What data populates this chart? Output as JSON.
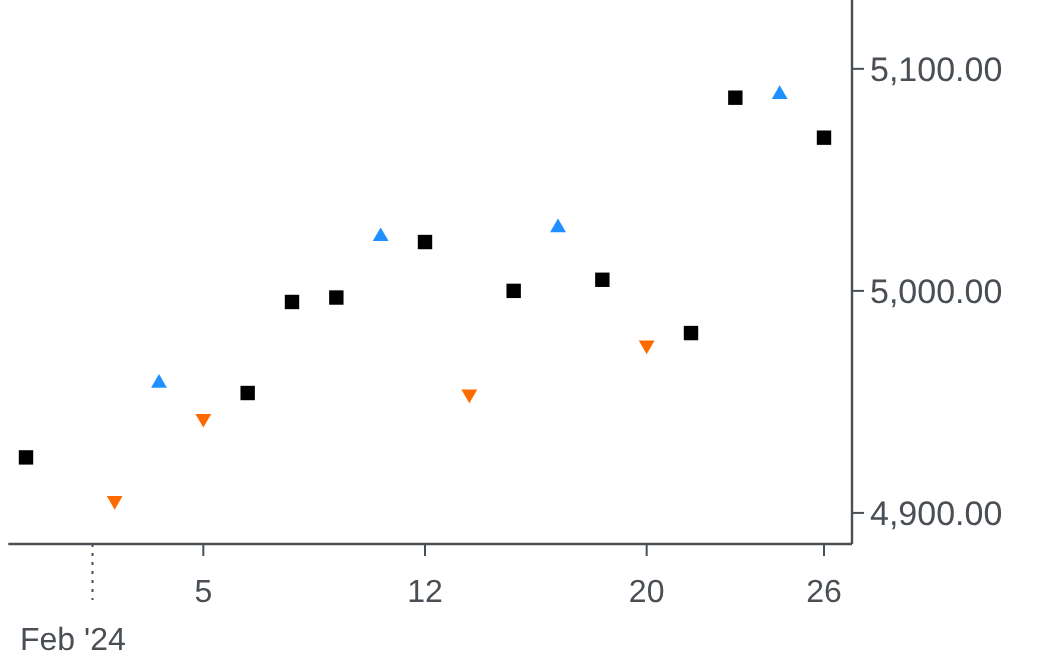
{
  "chart_data": {
    "type": "scatter",
    "categories": [
      null,
      null,
      null,
      null,
      "5",
      null,
      null,
      null,
      null,
      "12",
      null,
      null,
      null,
      null,
      "20",
      null,
      null,
      null,
      "26"
    ],
    "series": [
      {
        "color": "#000000",
        "marker": "square",
        "values": [
          4925,
          null,
          null,
          null,
          null,
          4954,
          4995,
          4997,
          null,
          5022,
          null,
          5000,
          null,
          5005,
          null,
          4981,
          5087,
          null,
          5069
        ]
      },
      {
        "color": "#1e90ff",
        "marker": "triangle",
        "values": [
          null,
          null,
          null,
          4959,
          null,
          null,
          null,
          null,
          5025,
          null,
          null,
          null,
          5029,
          null,
          null,
          null,
          null,
          5089,
          null
        ]
      },
      {
        "color": "#ff6a00",
        "marker": "triangle-down",
        "values": [
          null,
          null,
          4905,
          null,
          4942,
          null,
          null,
          null,
          null,
          null,
          4953,
          null,
          null,
          null,
          4975,
          null,
          null,
          null,
          null
        ]
      }
    ],
    "ylim": [
      4886,
      5131
    ],
    "yticks": [
      {
        "value": 4900,
        "label": "4,900.00"
      },
      {
        "value": 5000,
        "label": "5,000.00"
      },
      {
        "value": 5100,
        "label": "5,100.00"
      }
    ],
    "annotations": [
      "Feb '24"
    ],
    "grid": false
  }
}
